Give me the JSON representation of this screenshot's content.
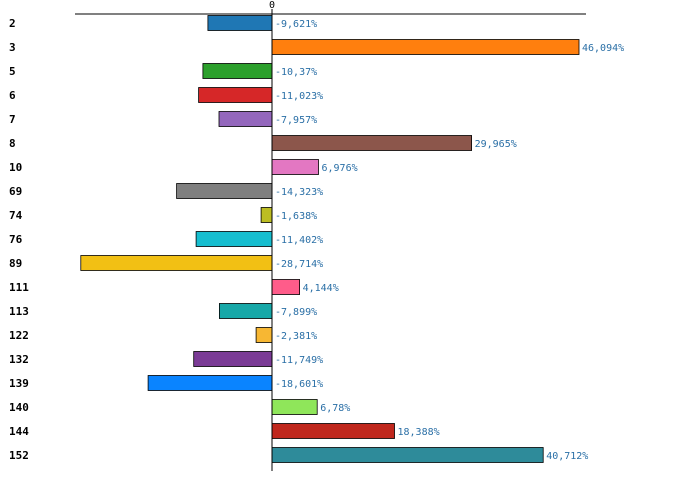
{
  "chart_data": {
    "type": "bar",
    "orientation": "horizontal",
    "categories": [
      "2",
      "3",
      "5",
      "6",
      "7",
      "8",
      "10",
      "69",
      "74",
      "76",
      "89",
      "111",
      "113",
      "122",
      "132",
      "139",
      "140",
      "144",
      "152"
    ],
    "values": [
      -9.621,
      46.094,
      -10.37,
      -11.023,
      -7.957,
      29.965,
      6.976,
      -14.323,
      -1.638,
      -11.402,
      -28.714,
      4.144,
      -7.899,
      -2.381,
      -11.749,
      -18.601,
      6.78,
      18.388,
      40.712
    ],
    "value_labels": [
      "-9,621%",
      "46,094%",
      "-10,37%",
      "-11,023%",
      "-7,957%",
      "29,965%",
      "6,976%",
      "-14,323%",
      "-1,638%",
      "-11,402%",
      "-28,714%",
      "4,144%",
      "-7,899%",
      "-2,381%",
      "-11,749%",
      "-18,601%",
      "6,78%",
      "18,388%",
      "40,712%"
    ],
    "colors": [
      "#1f77b4",
      "#ff7f0e",
      "#2ca02c",
      "#d62728",
      "#9467bd",
      "#8c564b",
      "#e377c2",
      "#7f7f7f",
      "#bcbd22",
      "#17becf",
      "#f2c014",
      "#ff5c8a",
      "#17a8a8",
      "#f7b733",
      "#7b3b96",
      "#0a84ff",
      "#8fe65a",
      "#c0271d",
      "#2e8b9a"
    ],
    "zero_tick_label": "0",
    "xlim": [
      -29.5,
      46.5
    ],
    "title": "",
    "xlabel": "",
    "ylabel": "",
    "grid": false,
    "legend": "none"
  }
}
